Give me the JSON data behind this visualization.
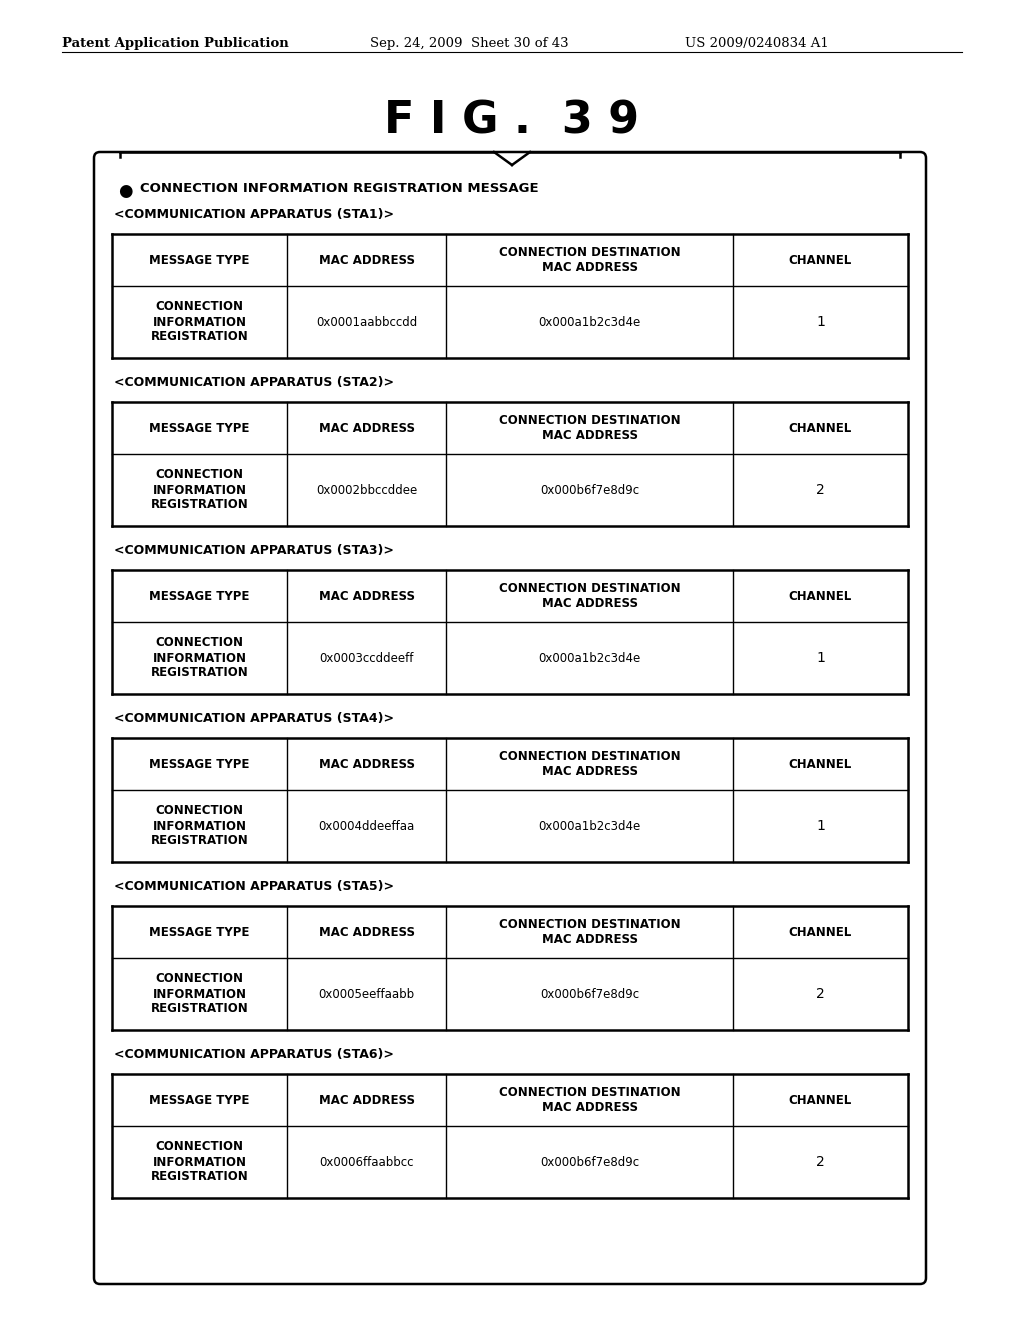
{
  "title": "F I G .  3 9",
  "header_left": "Patent Application Publication",
  "header_mid": "Sep. 24, 2009  Sheet 30 of 43",
  "header_right": "US 2009/0240834 A1",
  "bullet_text": "CONNECTION INFORMATION REGISTRATION MESSAGE",
  "tables": [
    {
      "label": "<COMMUNICATION APPARATUS (STA1)>",
      "mac_address": "0x0001aabbccdd",
      "dest_mac": "0x000a1b2c3d4e",
      "channel": "1"
    },
    {
      "label": "<COMMUNICATION APPARATUS (STA2)>",
      "mac_address": "0x0002bbccddee",
      "dest_mac": "0x000b6f7e8d9c",
      "channel": "2"
    },
    {
      "label": "<COMMUNICATION APPARATUS (STA3)>",
      "mac_address": "0x0003ccddeeff",
      "dest_mac": "0x000a1b2c3d4e",
      "channel": "1"
    },
    {
      "label": "<COMMUNICATION APPARATUS (STA4)>",
      "mac_address": "0x0004ddeeffaa",
      "dest_mac": "0x000a1b2c3d4e",
      "channel": "1"
    },
    {
      "label": "<COMMUNICATION APPARATUS (STA5)>",
      "mac_address": "0x0005eeffaabb",
      "dest_mac": "0x000b6f7e8d9c",
      "channel": "2"
    },
    {
      "label": "<COMMUNICATION APPARATUS (STA6)>",
      "mac_address": "0x0006ffaabbcc",
      "dest_mac": "0x000b6f7e8d9c",
      "channel": "2"
    }
  ],
  "col_headers": [
    "MESSAGE TYPE",
    "MAC ADDRESS",
    "CONNECTION DESTINATION\nMAC ADDRESS",
    "CHANNEL"
  ],
  "row_label": "CONNECTION\nINFORMATION\nREGISTRATION",
  "bg_color": "#ffffff",
  "text_color": "#000000"
}
